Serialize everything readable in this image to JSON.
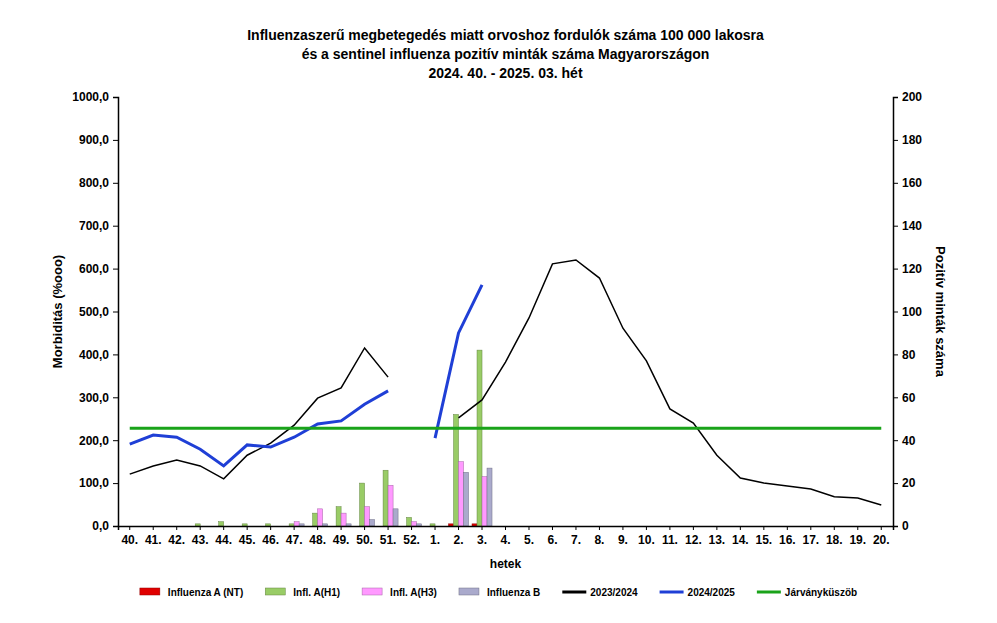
{
  "chart_data": {
    "type": "bar",
    "title": [
      "Influenzaszerű megbetegedés miatt orvoshoz fordulók száma 100 000 lakosra",
      "és a sentinel influenza pozitív minták száma Magyarországon",
      "2024. 40. - 2025. 03. hét"
    ],
    "x_label": "hetek",
    "y_label": "Morbiditás (%ooo)",
    "y2_label": "Pozitív minták száma",
    "categories": [
      "40.",
      "41.",
      "42.",
      "43.",
      "44.",
      "45.",
      "46.",
      "47.",
      "48.",
      "49.",
      "50.",
      "51.",
      "52.",
      "1.",
      "2.",
      "3.",
      "4.",
      "5.",
      "6.",
      "7.",
      "8.",
      "9.",
      "10.",
      "11.",
      "12.",
      "13.",
      "14.",
      "15.",
      "16.",
      "17.",
      "18.",
      "19.",
      "20."
    ],
    "ylim": [
      0,
      1000
    ],
    "yticks": [
      {
        "value": 0,
        "label": "0,0"
      },
      {
        "value": 100,
        "label": "100,0"
      },
      {
        "value": 200,
        "label": "200,0"
      },
      {
        "value": 300,
        "label": "300,0"
      },
      {
        "value": 400,
        "label": "400,0"
      },
      {
        "value": 500,
        "label": "500,0"
      },
      {
        "value": 600,
        "label": "600,0"
      },
      {
        "value": 700,
        "label": "700,0"
      },
      {
        "value": 800,
        "label": "800,0"
      },
      {
        "value": 900,
        "label": "900,0"
      },
      {
        "value": 1000,
        "label": "1000,0"
      }
    ],
    "y2lim": [
      0,
      200
    ],
    "y2ticks": [
      0,
      20,
      40,
      60,
      80,
      100,
      120,
      140,
      160,
      180,
      200
    ],
    "grid": false,
    "legend": "bottom",
    "series": [
      {
        "name": "Influenza A (NT)",
        "type": "bar",
        "axis": "y2",
        "color": "#e00000",
        "values": [
          0,
          0,
          0,
          0,
          0,
          0,
          0,
          0,
          0,
          0,
          0,
          0,
          0,
          0,
          1,
          1,
          null,
          null,
          null,
          null,
          null,
          null,
          null,
          null,
          null,
          null,
          null,
          null,
          null,
          null,
          null,
          null,
          null
        ]
      },
      {
        "name": "Infl. A(H1)",
        "type": "bar",
        "axis": "y2",
        "color": "#99cc66",
        "values": [
          0,
          0,
          0,
          1,
          2,
          1,
          1,
          1,
          6,
          9,
          20,
          26,
          4,
          1,
          52,
          82,
          null,
          null,
          null,
          null,
          null,
          null,
          null,
          null,
          null,
          null,
          null,
          null,
          null,
          null,
          null,
          null,
          null
        ]
      },
      {
        "name": "Infl. A(H3)",
        "type": "bar",
        "axis": "y2",
        "color": "#ff99ff",
        "values": [
          0,
          0,
          0,
          0,
          0,
          0,
          0,
          2,
          8,
          6,
          9,
          19,
          2,
          0,
          30,
          23,
          null,
          null,
          null,
          null,
          null,
          null,
          null,
          null,
          null,
          null,
          null,
          null,
          null,
          null,
          null,
          null,
          null
        ]
      },
      {
        "name": "Influenza B",
        "type": "bar",
        "axis": "y2",
        "color": "#aaaacc",
        "values": [
          0,
          0,
          0,
          0,
          0,
          0,
          0,
          1,
          1,
          1,
          3,
          8,
          1,
          0,
          25,
          27,
          null,
          null,
          null,
          null,
          null,
          null,
          null,
          null,
          null,
          null,
          null,
          null,
          null,
          null,
          null,
          null,
          null
        ]
      },
      {
        "name": "2023/2024",
        "type": "line",
        "color": "#000000",
        "line_style": "solid",
        "values": [
          121,
          140,
          154,
          140,
          110,
          165,
          193,
          235,
          298,
          322,
          415,
          347,
          null,
          null,
          252,
          294,
          382,
          485,
          611,
          620,
          578,
          461,
          385,
          273,
          240,
          165,
          112,
          100,
          93,
          86,
          68,
          65,
          49
        ]
      },
      {
        "name": "2024/2025",
        "type": "line",
        "color": "#1f3fd6",
        "line_style": "solid",
        "values": [
          191,
          212,
          207,
          179,
          140,
          189,
          184,
          207,
          238,
          245,
          284,
          315,
          null,
          205,
          450,
          562,
          null,
          null,
          null,
          null,
          null,
          null,
          null,
          null,
          null,
          null,
          null,
          null,
          null,
          null,
          null,
          null,
          null
        ]
      },
      {
        "name": "Járványküszöb",
        "type": "line",
        "color": "#1aa31a",
        "line_style": "solid",
        "values": [
          228,
          228,
          228,
          228,
          228,
          228,
          228,
          228,
          228,
          228,
          228,
          228,
          228,
          228,
          228,
          228,
          228,
          228,
          228,
          228,
          228,
          228,
          228,
          228,
          228,
          228,
          228,
          228,
          228,
          228,
          228,
          228,
          228
        ]
      }
    ]
  }
}
